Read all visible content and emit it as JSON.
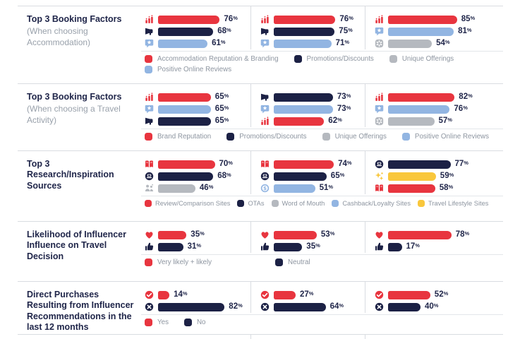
{
  "meta": {
    "percent_sign": "%"
  },
  "palette": {
    "red": "#E8353F",
    "navy": "#1C2145",
    "blue": "#92B5E2",
    "gray": "#B5B9BF",
    "yellow": "#F9C73C",
    "title_text": "#20264A",
    "muted_text": "#99A1AB",
    "legend_text": "#8D95A0",
    "line": "#D9DCE1"
  },
  "chart_data": [
    {
      "type": "bar",
      "title": "Top 3 Booking Factors",
      "subtitle": "(When choosing Accommodation)",
      "unit": "%",
      "xlim": [
        0,
        100
      ],
      "groups": [
        {
          "bars": [
            {
              "label": "Accommodation Reputation & Branding",
              "icon": "bar-chart",
              "color": "red",
              "value": 76
            },
            {
              "label": "Promotions/Discounts",
              "icon": "megaphone",
              "color": "navy",
              "value": 68
            },
            {
              "label": "Positive Online Reviews",
              "icon": "review-bubble",
              "color": "blue",
              "value": 61
            }
          ]
        },
        {
          "bars": [
            {
              "label": "Accommodation Reputation & Branding",
              "icon": "bar-chart",
              "color": "red",
              "value": 76
            },
            {
              "label": "Promotions/Discounts",
              "icon": "megaphone",
              "color": "navy",
              "value": 75
            },
            {
              "label": "Positive Online Reviews",
              "icon": "review-bubble",
              "color": "blue",
              "value": 71
            }
          ]
        },
        {
          "bars": [
            {
              "label": "Accommodation Reputation & Branding",
              "icon": "bar-chart",
              "color": "red",
              "value": 85
            },
            {
              "label": "Positive Online Reviews",
              "icon": "review-bubble",
              "color": "blue",
              "value": 81
            },
            {
              "label": "Unique Offerings",
              "icon": "gear",
              "color": "gray",
              "value": 54
            }
          ]
        }
      ],
      "legend": [
        {
          "label": "Accommodation Reputation & Branding",
          "color": "red"
        },
        {
          "label": "Promotions/Discounts",
          "color": "navy"
        },
        {
          "label": "Unique Offerings",
          "color": "gray"
        },
        {
          "label": "Positive Online Reviews",
          "color": "blue"
        }
      ]
    },
    {
      "type": "bar",
      "title": "Top 3 Booking Factors",
      "subtitle": "(When choosing a Travel Activity)",
      "unit": "%",
      "xlim": [
        0,
        100
      ],
      "groups": [
        {
          "bars": [
            {
              "label": "Brand Reputation",
              "icon": "bar-chart",
              "color": "red",
              "value": 65
            },
            {
              "label": "Positive Online Reviews",
              "icon": "review-bubble",
              "color": "blue",
              "value": 65
            },
            {
              "label": "Promotions/Discounts",
              "icon": "megaphone",
              "color": "navy",
              "value": 65
            }
          ]
        },
        {
          "bars": [
            {
              "label": "Promotions/Discounts",
              "icon": "megaphone",
              "color": "navy",
              "value": 73
            },
            {
              "label": "Positive Online Reviews",
              "icon": "review-bubble",
              "color": "blue",
              "value": 73
            },
            {
              "label": "Brand Reputation",
              "icon": "bar-chart",
              "color": "red",
              "value": 62
            }
          ]
        },
        {
          "bars": [
            {
              "label": "Brand Reputation",
              "icon": "bar-chart",
              "color": "red",
              "value": 82
            },
            {
              "label": "Positive Online Reviews",
              "icon": "review-bubble",
              "color": "blue",
              "value": 76
            },
            {
              "label": "Unique Offerings",
              "icon": "gear",
              "color": "gray",
              "value": 57
            }
          ]
        }
      ],
      "legend": [
        {
          "label": "Brand Reputation",
          "color": "red"
        },
        {
          "label": "Promotions/Discounts",
          "color": "navy"
        },
        {
          "label": "Unique Offerings",
          "color": "gray"
        },
        {
          "label": "Positive Online Reviews",
          "color": "blue"
        }
      ]
    },
    {
      "type": "bar",
      "title": "Top 3 Research/Inspiration Sources",
      "subtitle": "",
      "unit": "%",
      "xlim": [
        0,
        100
      ],
      "groups": [
        {
          "bars": [
            {
              "label": "Review/Comparison Sites",
              "icon": "review-book",
              "color": "red",
              "value": 70
            },
            {
              "label": "OTAs",
              "icon": "ota-device",
              "color": "navy",
              "value": 68
            },
            {
              "label": "Word of Mouth",
              "icon": "people-talking",
              "color": "gray",
              "value": 46
            }
          ]
        },
        {
          "bars": [
            {
              "label": "Review/Comparison Sites",
              "icon": "review-book",
              "color": "red",
              "value": 74
            },
            {
              "label": "OTAs",
              "icon": "ota-device",
              "color": "navy",
              "value": 65
            },
            {
              "label": "Cashback/Loyalty Sites",
              "icon": "cashback-coin",
              "color": "blue",
              "value": 51
            }
          ]
        },
        {
          "bars": [
            {
              "label": "OTAs",
              "icon": "ota-device",
              "color": "navy",
              "value": 77
            },
            {
              "label": "Travel Lifestyle Sites",
              "icon": "sparkle",
              "color": "yellow",
              "value": 59
            },
            {
              "label": "Review/Comparison Sites",
              "icon": "review-book",
              "color": "red",
              "value": 58
            }
          ]
        }
      ],
      "legend": [
        {
          "label": "Review/Comparison Sites",
          "color": "red"
        },
        {
          "label": "OTAs",
          "color": "navy"
        },
        {
          "label": "Word of Mouth",
          "color": "gray"
        },
        {
          "label": "Cashback/Loyalty Sites",
          "color": "blue"
        },
        {
          "label": "Travel Lifestyle Sites",
          "color": "yellow"
        }
      ]
    },
    {
      "type": "bar",
      "title": "Likelihood of Influencer Influence on Travel Decision",
      "subtitle": "",
      "unit": "%",
      "xlim": [
        0,
        100
      ],
      "groups": [
        {
          "bars": [
            {
              "label": "Very likely + likely",
              "icon": "heart",
              "color": "red",
              "value": 35
            },
            {
              "label": "Neutral",
              "icon": "thumbs-up",
              "color": "navy",
              "value": 31
            }
          ]
        },
        {
          "bars": [
            {
              "label": "Very likely + likely",
              "icon": "heart",
              "color": "red",
              "value": 53
            },
            {
              "label": "Neutral",
              "icon": "thumbs-up",
              "color": "navy",
              "value": 35
            }
          ]
        },
        {
          "bars": [
            {
              "label": "Very likely + likely",
              "icon": "heart",
              "color": "red",
              "value": 78
            },
            {
              "label": "Neutral",
              "icon": "thumbs-up",
              "color": "navy",
              "value": 17
            }
          ]
        }
      ],
      "legend": [
        {
          "label": "Very likely + likely",
          "color": "red"
        },
        {
          "label": "Neutral",
          "color": "navy"
        }
      ]
    },
    {
      "type": "bar",
      "title": "Direct Purchases Resulting from Influencer Recommendations in the last 12 months",
      "subtitle": "",
      "unit": "%",
      "xlim": [
        0,
        100
      ],
      "groups": [
        {
          "bars": [
            {
              "label": "Yes",
              "icon": "check-circle",
              "color": "red",
              "value": 14
            },
            {
              "label": "No",
              "icon": "cross-circle",
              "color": "navy",
              "value": 82
            }
          ]
        },
        {
          "bars": [
            {
              "label": "Yes",
              "icon": "check-circle",
              "color": "red",
              "value": 27
            },
            {
              "label": "No",
              "icon": "cross-circle",
              "color": "navy",
              "value": 64
            }
          ]
        },
        {
          "bars": [
            {
              "label": "Yes",
              "icon": "check-circle",
              "color": "red",
              "value": 52
            },
            {
              "label": "No",
              "icon": "cross-circle",
              "color": "navy",
              "value": 40
            }
          ]
        }
      ],
      "legend": [
        {
          "label": "Yes",
          "color": "red"
        },
        {
          "label": "No",
          "color": "navy"
        }
      ]
    }
  ]
}
